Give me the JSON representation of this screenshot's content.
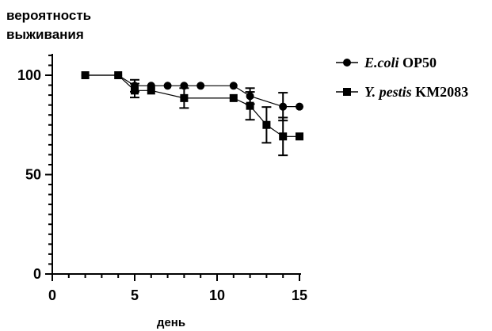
{
  "chart_data": {
    "type": "line",
    "ylabel_lines": [
      "вероятность",
      "выживания"
    ],
    "xlabel": "день",
    "xlim": [
      0,
      15
    ],
    "ylim": [
      0,
      100
    ],
    "x_ticks": [
      0,
      5,
      10,
      15
    ],
    "y_ticks": [
      0,
      50,
      100
    ],
    "grid": false,
    "legend_position": "top-right",
    "series": [
      {
        "name_italic": "E.coli",
        "name_rest": " OP50",
        "marker": "circle",
        "color": "#000000",
        "points": [
          {
            "x": 2,
            "y": 100
          },
          {
            "x": 4,
            "y": 100
          },
          {
            "x": 5,
            "y": 94.7,
            "err": 3
          },
          {
            "x": 6,
            "y": 94.7
          },
          {
            "x": 7,
            "y": 94.7
          },
          {
            "x": 8,
            "y": 94.7
          },
          {
            "x": 9,
            "y": 94.7
          },
          {
            "x": 11,
            "y": 94.7
          },
          {
            "x": 12,
            "y": 89.5,
            "err": 4
          },
          {
            "x": 14,
            "y": 84.2,
            "err": 7
          },
          {
            "x": 15,
            "y": 84.2
          }
        ]
      },
      {
        "name_italic": "Y. pestis",
        "name_rest": " KM2083",
        "marker": "square",
        "color": "#000000",
        "points": [
          {
            "x": 2,
            "y": 100
          },
          {
            "x": 4,
            "y": 100
          },
          {
            "x": 5,
            "y": 92.3,
            "err": 3.5
          },
          {
            "x": 6,
            "y": 92.3
          },
          {
            "x": 8,
            "y": 88.5,
            "err": 5
          },
          {
            "x": 11,
            "y": 88.5
          },
          {
            "x": 12,
            "y": 84.6,
            "err": 7
          },
          {
            "x": 13,
            "y": 75,
            "err": 9
          },
          {
            "x": 14,
            "y": 69.2,
            "err": 9.5
          },
          {
            "x": 15,
            "y": 69.2
          }
        ]
      }
    ]
  }
}
